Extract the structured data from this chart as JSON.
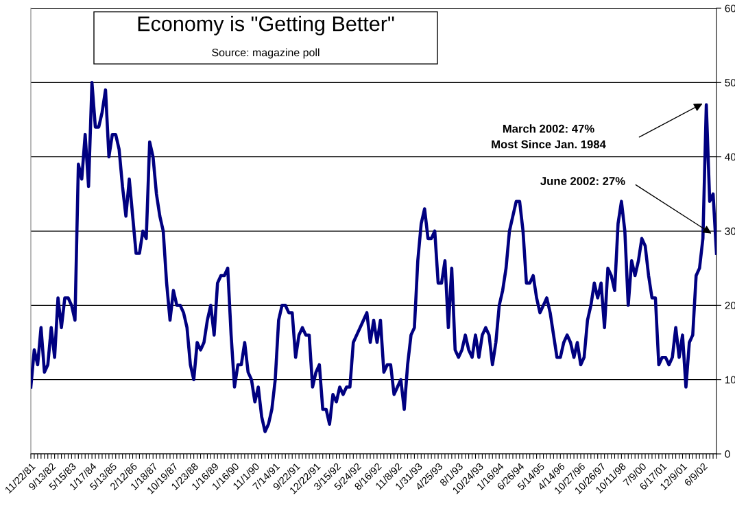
{
  "chart_data": {
    "type": "line",
    "title": "Economy is \"Getting Better\"",
    "subtitle": "Source: magazine poll",
    "categories": [
      "11/22/81",
      null,
      null,
      null,
      null,
      null,
      "9/13/82",
      null,
      null,
      null,
      null,
      null,
      "5/15/83",
      null,
      null,
      null,
      null,
      null,
      "1/17/84",
      null,
      null,
      null,
      null,
      null,
      "5/13/85",
      null,
      null,
      null,
      null,
      null,
      "2/12/86",
      null,
      null,
      null,
      null,
      null,
      "1/18/87",
      null,
      null,
      null,
      null,
      null,
      "10/19/87",
      null,
      null,
      null,
      null,
      null,
      "1/23/88",
      null,
      null,
      null,
      null,
      null,
      "1/16/89",
      null,
      null,
      null,
      null,
      null,
      "1/16/90",
      null,
      null,
      null,
      null,
      null,
      "11/1/90",
      null,
      null,
      null,
      null,
      null,
      "7/14/91",
      null,
      null,
      null,
      null,
      null,
      "9/22/91",
      null,
      null,
      null,
      null,
      null,
      "12/22/91",
      null,
      null,
      null,
      null,
      null,
      "3/15/92",
      null,
      null,
      null,
      null,
      null,
      "5/24/92",
      null,
      null,
      null,
      null,
      null,
      "8/16/92",
      null,
      null,
      null,
      null,
      null,
      "11/8/92",
      null,
      null,
      null,
      null,
      null,
      "1/31/93",
      null,
      null,
      null,
      null,
      null,
      "4/25/93",
      null,
      null,
      null,
      null,
      null,
      "8/1/93",
      null,
      null,
      null,
      null,
      null,
      "10/24/93",
      null,
      null,
      null,
      null,
      null,
      "1/16/94",
      null,
      null,
      null,
      null,
      null,
      "6/26/94",
      null,
      null,
      null,
      null,
      null,
      "5/14/95",
      null,
      null,
      null,
      null,
      null,
      "4/14/96",
      null,
      null,
      null,
      null,
      null,
      "10/27/96",
      null,
      null,
      null,
      null,
      null,
      "10/26/97",
      null,
      null,
      null,
      null,
      null,
      "10/11/98",
      null,
      null,
      null,
      null,
      null,
      "7/9/00",
      null,
      null,
      null,
      null,
      null,
      "6/17/01",
      null,
      null,
      null,
      null,
      null,
      "12/9/01",
      null,
      null,
      null,
      null,
      null,
      "6/9/02",
      null,
      null,
      null,
      null
    ],
    "series": [
      {
        "color": "#000080",
        "values": [
          9,
          14,
          12,
          17,
          11,
          12,
          17,
          13,
          21,
          17,
          21,
          21,
          20,
          18,
          39,
          37,
          43,
          36,
          50,
          44,
          44,
          46,
          49,
          40,
          43,
          43,
          41,
          36,
          32,
          37,
          32,
          27,
          27,
          30,
          29,
          42,
          40,
          35,
          32,
          30,
          23,
          18,
          22,
          20,
          20,
          19,
          17,
          12,
          10,
          15,
          14,
          15,
          18,
          20,
          16,
          23,
          24,
          24,
          25,
          16,
          9,
          12,
          12,
          15,
          11,
          10,
          7,
          9,
          5,
          3,
          4,
          6,
          10,
          18,
          20,
          20,
          19,
          19,
          13,
          16,
          17,
          16,
          16,
          9,
          11,
          12,
          6,
          6,
          4,
          8,
          7,
          9,
          8,
          9,
          9,
          15,
          16,
          17,
          18,
          19,
          15,
          18,
          15,
          18,
          11,
          12,
          12,
          8,
          9,
          10,
          6,
          12,
          16,
          17,
          26,
          31,
          33,
          29,
          29,
          30,
          23,
          23,
          26,
          17,
          25,
          14,
          13,
          14,
          16,
          14,
          13,
          16,
          13,
          16,
          17,
          16,
          12,
          15,
          20,
          22,
          25,
          30,
          32,
          34,
          34,
          30,
          23,
          23,
          24,
          21,
          19,
          20,
          21,
          19,
          16,
          13,
          13,
          15,
          16,
          15,
          13,
          15,
          12,
          13,
          18,
          20,
          23,
          21,
          23,
          17,
          25,
          24,
          22,
          31,
          34,
          30,
          20,
          26,
          24,
          26,
          29,
          28,
          24,
          21,
          21,
          12,
          13,
          13,
          12,
          13,
          17,
          13,
          16,
          9,
          15,
          16,
          24,
          25,
          29,
          47,
          34,
          35,
          27
        ]
      }
    ],
    "ylim": [
      0,
      60
    ],
    "yticks": [
      0,
      10,
      20,
      30,
      40,
      50,
      60
    ],
    "grid": "y",
    "legend": false,
    "marker": "none",
    "line_style": "solid",
    "annotations": [
      "March 2002: 47%\nMost Since Jan. 1984",
      "June 2002: 27%"
    ]
  }
}
